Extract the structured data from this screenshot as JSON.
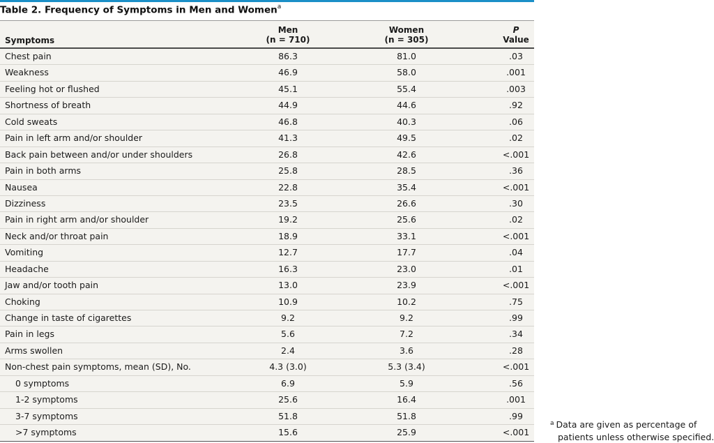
{
  "title": {
    "text": "Table 2. Frequency of Symptoms in Men and Women",
    "sup": "a"
  },
  "headers": {
    "symptoms": "Symptoms",
    "men_line1": "Men",
    "men_line2": "(n = 710)",
    "women_line1": "Women",
    "women_line2": "(n = 305)",
    "p_line1": "P",
    "p_line2": "Value"
  },
  "rows": [
    {
      "symptom": "Chest pain",
      "men": "86.3",
      "women": "81.0",
      "p": ".03",
      "indent": false
    },
    {
      "symptom": "Weakness",
      "men": "46.9",
      "women": "58.0",
      "p": ".001",
      "indent": false
    },
    {
      "symptom": "Feeling hot or flushed",
      "men": "45.1",
      "women": "55.4",
      "p": ".003",
      "indent": false
    },
    {
      "symptom": "Shortness of breath",
      "men": "44.9",
      "women": "44.6",
      "p": ".92",
      "indent": false
    },
    {
      "symptom": "Cold sweats",
      "men": "46.8",
      "women": "40.3",
      "p": ".06",
      "indent": false
    },
    {
      "symptom": "Pain in left arm and/or shoulder",
      "men": "41.3",
      "women": "49.5",
      "p": ".02",
      "indent": false
    },
    {
      "symptom": "Back pain between and/or under shoulders",
      "men": "26.8",
      "women": "42.6",
      "p": "<.001",
      "indent": false
    },
    {
      "symptom": "Pain in both arms",
      "men": "25.8",
      "women": "28.5",
      "p": ".36",
      "indent": false
    },
    {
      "symptom": "Nausea",
      "men": "22.8",
      "women": "35.4",
      "p": "<.001",
      "indent": false
    },
    {
      "symptom": "Dizziness",
      "men": "23.5",
      "women": "26.6",
      "p": ".30",
      "indent": false
    },
    {
      "symptom": "Pain in right arm and/or shoulder",
      "men": "19.2",
      "women": "25.6",
      "p": ".02",
      "indent": false
    },
    {
      "symptom": "Neck and/or throat pain",
      "men": "18.9",
      "women": "33.1",
      "p": "<.001",
      "indent": false
    },
    {
      "symptom": "Vomiting",
      "men": "12.7",
      "women": "17.7",
      "p": ".04",
      "indent": false
    },
    {
      "symptom": "Headache",
      "men": "16.3",
      "women": "23.0",
      "p": ".01",
      "indent": false
    },
    {
      "symptom": "Jaw and/or tooth pain",
      "men": "13.0",
      "women": "23.9",
      "p": "<.001",
      "indent": false
    },
    {
      "symptom": "Choking",
      "men": "10.9",
      "women": "10.2",
      "p": ".75",
      "indent": false
    },
    {
      "symptom": "Change in taste of cigarettes",
      "men": "9.2",
      "women": "9.2",
      "p": ".99",
      "indent": false
    },
    {
      "symptom": "Pain in legs",
      "men": "5.6",
      "women": "7.2",
      "p": ".34",
      "indent": false
    },
    {
      "symptom": "Arms swollen",
      "men": "2.4",
      "women": "3.6",
      "p": ".28",
      "indent": false
    },
    {
      "symptom": "Non-chest pain symptoms, mean (SD), No.",
      "men": "4.3 (3.0)",
      "women": "5.3 (3.4)",
      "p": "<.001",
      "indent": false
    },
    {
      "symptom": "0 symptoms",
      "men": "6.9",
      "women": "5.9",
      "p": ".56",
      "indent": true
    },
    {
      "symptom": "1-2 symptoms",
      "men": "25.6",
      "women": "16.4",
      "p": ".001",
      "indent": true
    },
    {
      "symptom": "3-7 symptoms",
      "men": "51.8",
      "women": "51.8",
      "p": ".99",
      "indent": true
    },
    {
      "symptom": ">7 symptoms",
      "men": "15.6",
      "women": "25.9",
      "p": "<.001",
      "indent": true
    }
  ],
  "footnote": {
    "mark": "a",
    "line1": "Data are given as percentage of",
    "line2": "patients unless otherwise specified."
  },
  "colors": {
    "accent_bar": "#1b8fc7",
    "table_background": "#f4f3ef"
  }
}
